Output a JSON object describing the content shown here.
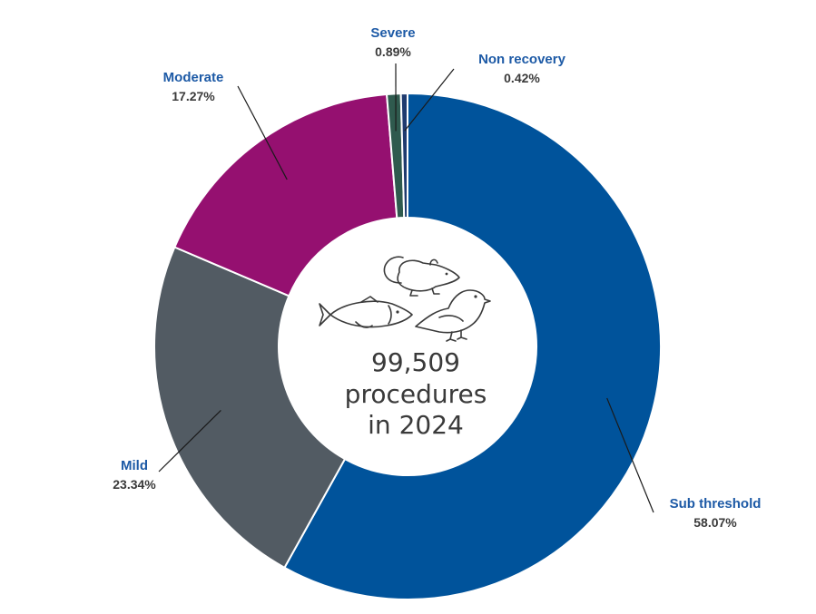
{
  "chart_data": {
    "type": "pie",
    "donut": true,
    "center_text": [
      "99,509",
      "procedures",
      "in 2024"
    ],
    "slices": [
      {
        "name": "Sub threshold",
        "value": 58.07,
        "value_label": "58.07%",
        "color": "#00539b"
      },
      {
        "name": "Mild",
        "value": 23.34,
        "value_label": "23.34%",
        "color": "#525b63"
      },
      {
        "name": "Moderate",
        "value": 17.27,
        "value_label": "17.27%",
        "color": "#951070"
      },
      {
        "name": "Severe",
        "value": 0.89,
        "value_label": "0.89%",
        "color": "#2f5a4e"
      },
      {
        "name": "Non recovery",
        "value": 0.42,
        "value_label": "0.42%",
        "color": "#1f3b6f"
      }
    ],
    "label_color": "#1d5aa6",
    "icons": [
      "mouse-icon",
      "fish-icon",
      "bird-icon"
    ]
  }
}
